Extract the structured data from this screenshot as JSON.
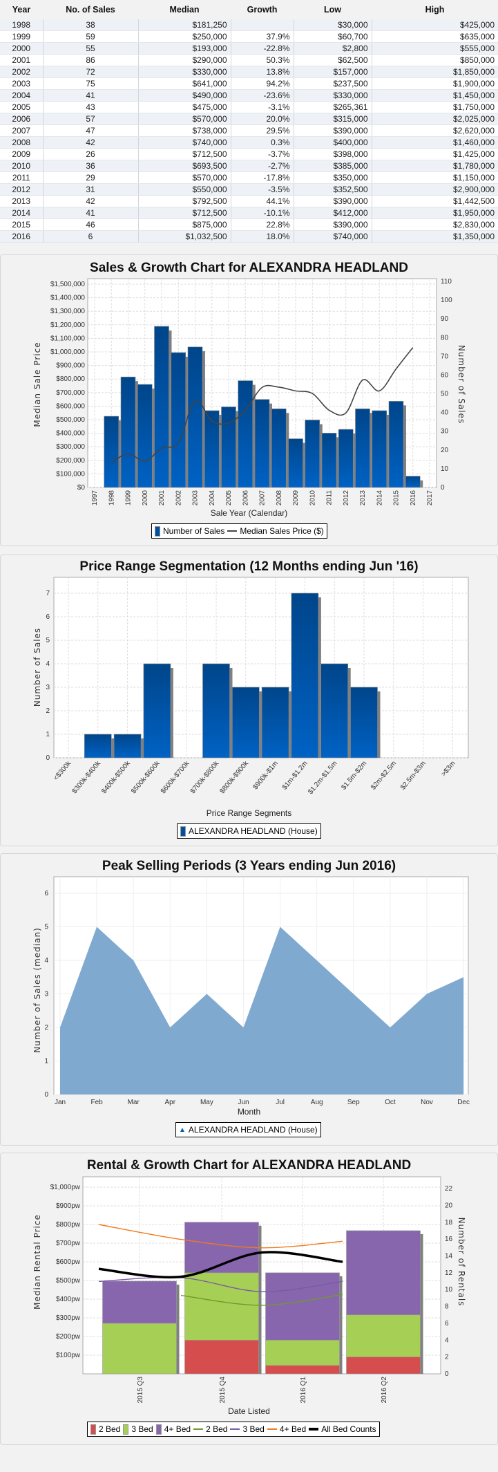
{
  "table": {
    "headers": [
      "Year",
      "No. of Sales",
      "Median",
      "Growth",
      "Low",
      "High"
    ],
    "rows": [
      [
        "1998",
        "38",
        "$181,250",
        "",
        "$30,000",
        "$425,000"
      ],
      [
        "1999",
        "59",
        "$250,000",
        "37.9%",
        "$60,700",
        "$635,000"
      ],
      [
        "2000",
        "55",
        "$193,000",
        "-22.8%",
        "$2,800",
        "$555,000"
      ],
      [
        "2001",
        "86",
        "$290,000",
        "50.3%",
        "$62,500",
        "$850,000"
      ],
      [
        "2002",
        "72",
        "$330,000",
        "13.8%",
        "$157,000",
        "$1,850,000"
      ],
      [
        "2003",
        "75",
        "$641,000",
        "94.2%",
        "$237,500",
        "$1,900,000"
      ],
      [
        "2004",
        "41",
        "$490,000",
        "-23.6%",
        "$330,000",
        "$1,450,000"
      ],
      [
        "2005",
        "43",
        "$475,000",
        "-3.1%",
        "$265,361",
        "$1,750,000"
      ],
      [
        "2006",
        "57",
        "$570,000",
        "20.0%",
        "$315,000",
        "$2,025,000"
      ],
      [
        "2007",
        "47",
        "$738,000",
        "29.5%",
        "$390,000",
        "$2,620,000"
      ],
      [
        "2008",
        "42",
        "$740,000",
        "0.3%",
        "$400,000",
        "$1,460,000"
      ],
      [
        "2009",
        "26",
        "$712,500",
        "-3.7%",
        "$398,000",
        "$1,425,000"
      ],
      [
        "2010",
        "36",
        "$693,500",
        "-2.7%",
        "$385,000",
        "$1,780,000"
      ],
      [
        "2011",
        "29",
        "$570,000",
        "-17.8%",
        "$350,000",
        "$1,150,000"
      ],
      [
        "2012",
        "31",
        "$550,000",
        "-3.5%",
        "$352,500",
        "$2,900,000"
      ],
      [
        "2013",
        "42",
        "$792,500",
        "44.1%",
        "$390,000",
        "$1,442,500"
      ],
      [
        "2014",
        "41",
        "$712,500",
        "-10.1%",
        "$412,000",
        "$1,950,000"
      ],
      [
        "2015",
        "46",
        "$875,000",
        "22.8%",
        "$390,000",
        "$2,830,000"
      ],
      [
        "2016",
        "6",
        "$1,032,500",
        "18.0%",
        "$740,000",
        "$1,350,000"
      ]
    ]
  },
  "colors": {
    "bar_top": "#00458a",
    "bar_bottom": "#0062c4",
    "line": "#444444",
    "area": "#80a9d0",
    "bed2": "#d54d4d",
    "bed3": "#a6cf55",
    "bed4": "#8766ae",
    "line2": "#6e9a2e",
    "line3": "#7a5aa6",
    "line4": "#f07a1a",
    "all": "#000000",
    "growth_pos": "#5cc040",
    "growth_neg": "#f03030"
  },
  "chart_data": [
    {
      "type": "bar+line",
      "title": "Sales & Growth Chart for ALEXANDRA HEADLAND",
      "xlabel": "Sale Year (Calendar)",
      "ylabel": "Median Sale Price",
      "y2label": "Number of Sales",
      "x_ticks": [
        "1997",
        "1998",
        "1999",
        "2000",
        "2001",
        "2002",
        "2003",
        "2004",
        "2005",
        "2006",
        "2007",
        "2008",
        "2009",
        "2010",
        "2011",
        "2012",
        "2013",
        "2014",
        "2015",
        "2016",
        "2017"
      ],
      "y_ticks": [
        "$0",
        "$100,000",
        "$200,000",
        "$300,000",
        "$400,000",
        "$500,000",
        "$600,000",
        "$700,000",
        "$800,000",
        "$900,000",
        "$1,000,000",
        "$1,100,000",
        "$1,200,000",
        "$1,300,000",
        "$1,400,000",
        "$1,500,000"
      ],
      "y2_ticks": [
        "0",
        "10",
        "20",
        "30",
        "40",
        "50",
        "60",
        "70",
        "80",
        "90",
        "100",
        "110"
      ],
      "ylim": [
        0,
        1500000
      ],
      "y2lim": [
        0,
        110
      ],
      "years": [
        1998,
        1999,
        2000,
        2001,
        2002,
        2003,
        2004,
        2005,
        2006,
        2007,
        2008,
        2009,
        2010,
        2011,
        2012,
        2013,
        2014,
        2015,
        2016
      ],
      "series": [
        {
          "name": "Number of Sales",
          "axis": "right",
          "values": [
            38,
            59,
            55,
            86,
            72,
            75,
            41,
            43,
            57,
            47,
            42,
            26,
            36,
            29,
            31,
            42,
            41,
            46,
            6
          ]
        },
        {
          "name": "Median Sales Price ($)",
          "axis": "left",
          "values": [
            181250,
            250000,
            193000,
            290000,
            330000,
            641000,
            490000,
            475000,
            570000,
            738000,
            740000,
            712500,
            693500,
            570000,
            550000,
            792500,
            712500,
            875000,
            1032500
          ]
        }
      ],
      "legend": [
        "Number of Sales",
        "Median Sales Price ($)"
      ]
    },
    {
      "type": "bar",
      "title": "Price Range Segmentation (12 Months ending Jun '16)",
      "xlabel": "Price Range Segments",
      "ylabel": "Number of Sales",
      "categories": [
        "<$300k",
        "$300k-$400k",
        "$400k-$500k",
        "$500k-$600k",
        "$600k-$700k",
        "$700k-$800k",
        "$800k-$900k",
        "$900k-$1m",
        "$1m-$1.2m",
        "$1.2m-$1.5m",
        "$1.5m-$2m",
        "$2m-$2.5m",
        "$2.5m-$3m",
        ">$3m"
      ],
      "values": [
        0,
        1,
        1,
        4,
        0,
        4,
        3,
        3,
        7,
        4,
        3,
        0,
        0,
        0
      ],
      "y_ticks": [
        "0",
        "1",
        "2",
        "3",
        "4",
        "5",
        "6",
        "7"
      ],
      "ylim": [
        0,
        7.6
      ],
      "legend": [
        "ALEXANDRA HEADLAND (House)"
      ]
    },
    {
      "type": "area",
      "title": "Peak Selling Periods (3 Years ending Jun 2016)",
      "xlabel": "Month",
      "ylabel": "Number of Sales (median)",
      "categories": [
        "Jan",
        "Feb",
        "Mar",
        "Apr",
        "May",
        "Jun",
        "Jul",
        "Aug",
        "Sep",
        "Oct",
        "Nov",
        "Dec"
      ],
      "values": [
        2,
        5,
        4,
        2,
        3,
        2,
        5,
        4,
        3,
        2,
        3,
        3.5
      ],
      "y_ticks": [
        "0",
        "1",
        "2",
        "3",
        "4",
        "5",
        "6"
      ],
      "ylim": [
        0,
        6.5
      ],
      "legend": [
        "ALEXANDRA HEADLAND (House)"
      ]
    },
    {
      "type": "stacked-bar+line",
      "title": "Rental & Growth Chart for ALEXANDRA HEADLAND",
      "xlabel": "Date Listed",
      "ylabel": "Median Rental Price",
      "y2label": "Number of Rentals",
      "categories": [
        "2015 Q3",
        "2015 Q4",
        "2016 Q1",
        "2016 Q2"
      ],
      "y_ticks": [
        "$100pw",
        "$200pw",
        "$300pw",
        "$400pw",
        "$500pw",
        "$600pw",
        "$700pw",
        "$800pw",
        "$900pw",
        "$1,000pw"
      ],
      "y2_ticks": [
        "0",
        "2",
        "4",
        "6",
        "8",
        "10",
        "12",
        "14",
        "16",
        "18",
        "20",
        "22"
      ],
      "bars": [
        {
          "name": "2 Bed",
          "values": [
            0,
            4,
            1,
            2
          ]
        },
        {
          "name": "3 Bed",
          "values": [
            6,
            8,
            3,
            5
          ]
        },
        {
          "name": "4+ Bed",
          "values": [
            5,
            6,
            8,
            10
          ]
        }
      ],
      "lines": [
        {
          "name": "2 Bed",
          "values": [
            null,
            420,
            367,
            425
          ]
        },
        {
          "name": "3 Bed",
          "values": [
            495,
            515,
            440,
            495
          ]
        },
        {
          "name": "4+ Bed",
          "values": [
            800,
            720,
            675,
            710
          ]
        },
        {
          "name": "All Bed Counts",
          "values": [
            562,
            520,
            650,
            600
          ]
        }
      ],
      "legend": [
        "2 Bed",
        "3 Bed",
        "4+ Bed",
        "2 Bed",
        "3 Bed",
        "4+ Bed",
        "All Bed Counts"
      ]
    }
  ]
}
